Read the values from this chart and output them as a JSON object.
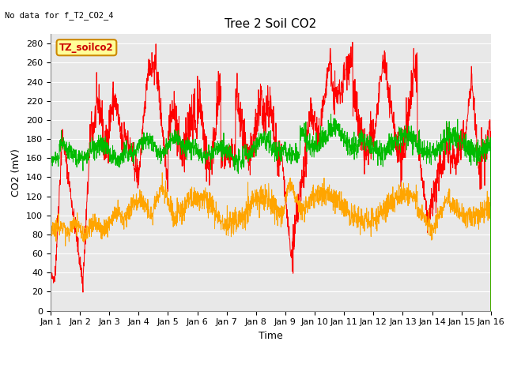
{
  "title": "Tree 2 Soil CO2",
  "subtitle": "No data for f_T2_CO2_4",
  "xlabel": "Time",
  "ylabel": "CO2 (mV)",
  "legend_label": "TZ_soilco2",
  "ylim": [
    0,
    290
  ],
  "yticks": [
    0,
    20,
    40,
    60,
    80,
    100,
    120,
    140,
    160,
    180,
    200,
    220,
    240,
    260,
    280
  ],
  "color_2cm": "#ff0000",
  "color_4cm": "#ffa500",
  "color_8cm": "#00bb00",
  "bg_color": "#e8e8e8",
  "fig_color": "#ffffff",
  "legend_box_color": "#ffff99",
  "legend_box_edge": "#cc0000",
  "n_points": 2000,
  "title_fontsize": 11,
  "axis_fontsize": 9,
  "tick_fontsize": 8
}
